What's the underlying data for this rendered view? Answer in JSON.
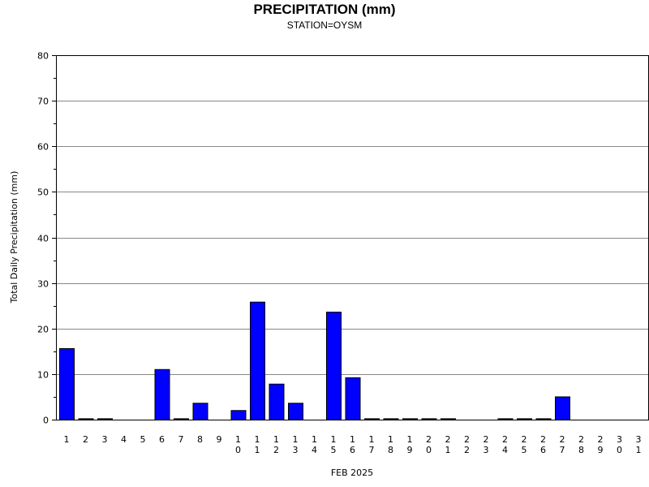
{
  "chart_data": {
    "type": "bar",
    "title": "PRECIPITATION (mm)",
    "subtitle": "STATION=OYSM",
    "xlabel": "FEB 2025",
    "ylabel": "Total Daily Precipitation (mm)",
    "ylim": [
      0,
      80
    ],
    "yticks": [
      0,
      10,
      20,
      30,
      40,
      50,
      60,
      70,
      80
    ],
    "grid": true,
    "bar_color": "#0000ff",
    "categories": [
      "1",
      "2",
      "3",
      "4",
      "5",
      "6",
      "7",
      "8",
      "9",
      "10",
      "11",
      "12",
      "13",
      "14",
      "15",
      "16",
      "17",
      "18",
      "19",
      "20",
      "21",
      "22",
      "23",
      "24",
      "25",
      "26",
      "27",
      "28",
      "29",
      "30",
      "31"
    ],
    "values": [
      15.6,
      0.2,
      0.2,
      null,
      null,
      11.0,
      0.2,
      3.6,
      null,
      2.0,
      25.8,
      7.8,
      3.6,
      null,
      23.6,
      9.2,
      0.2,
      0.2,
      0.2,
      0.2,
      0.2,
      null,
      null,
      0.2,
      0.2,
      0.2,
      5.0,
      null,
      null,
      null,
      null
    ]
  }
}
